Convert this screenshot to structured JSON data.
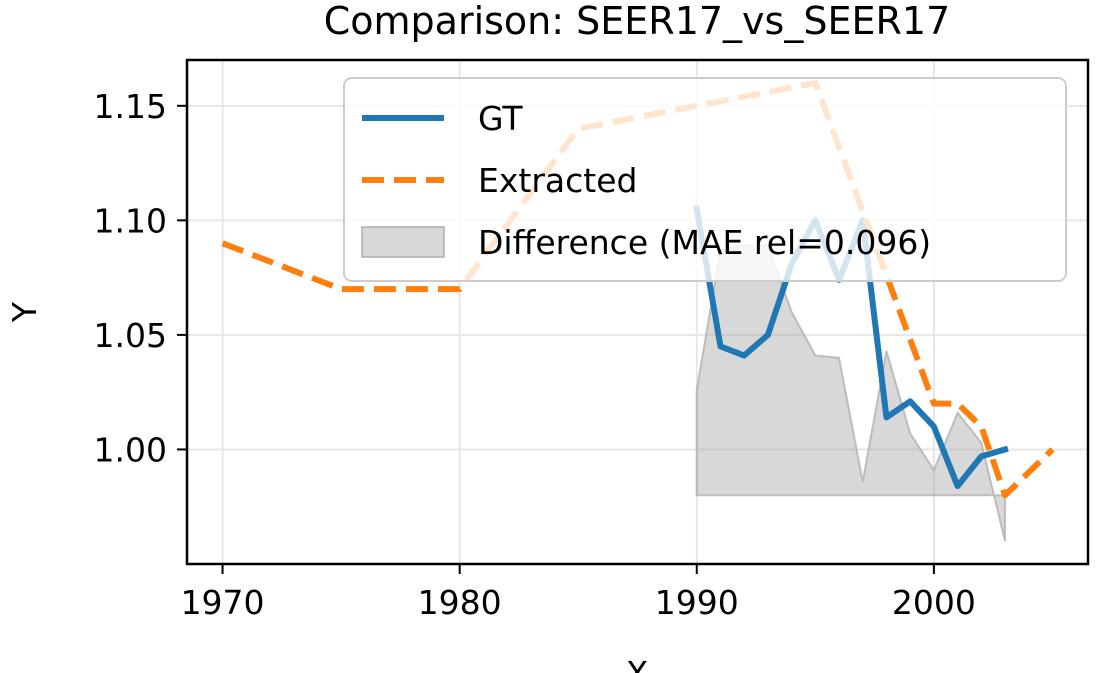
{
  "chart_data": {
    "type": "line",
    "title": "Comparison: SEER17_vs_SEER17",
    "xlabel": "X",
    "ylabel": "Y",
    "xlim": [
      1968.5,
      2006.5
    ],
    "ylim": [
      0.95,
      1.17
    ],
    "xticks": [
      1970,
      1980,
      1990,
      2000
    ],
    "yticks": [
      1.0,
      1.05,
      1.1,
      1.15
    ],
    "ytick_labels": [
      "1.00",
      "1.05",
      "1.10",
      "1.15"
    ],
    "grid": true,
    "legend_position": "upper-right",
    "series": [
      {
        "name": "GT",
        "style": "solid",
        "color": "#1f77b4",
        "x": [
          1990,
          1991,
          1992,
          1993,
          1994,
          1995,
          1996,
          1997,
          1998,
          1999,
          2000,
          2001,
          2002,
          2003
        ],
        "y": [
          1.105,
          1.045,
          1.041,
          1.05,
          1.081,
          1.1,
          1.074,
          1.1,
          1.014,
          1.021,
          1.01,
          0.984,
          0.997,
          1.0
        ]
      },
      {
        "name": "Extracted",
        "style": "dashed",
        "color": "#ff7f0e",
        "x": [
          1970,
          1975,
          1980,
          1985,
          1990,
          1995,
          2000,
          2001,
          2002,
          2003,
          2005
        ],
        "y": [
          1.09,
          1.07,
          1.07,
          1.14,
          1.15,
          1.16,
          1.02,
          1.02,
          1.01,
          0.98,
          1.0
        ]
      }
    ],
    "difference": {
      "name": "Difference (MAE rel=0.096)",
      "color": "#a9a9a9",
      "baseline": 0.98,
      "x": [
        1990,
        1991,
        1992,
        1993,
        1994,
        1995,
        1996,
        1997,
        1998,
        1999,
        2000,
        2001,
        2002,
        2003
      ],
      "y": [
        1.026,
        1.087,
        1.089,
        1.089,
        1.06,
        1.041,
        1.04,
        0.986,
        1.043,
        1.007,
        0.991,
        1.016,
        1.003,
        0.96
      ]
    }
  }
}
